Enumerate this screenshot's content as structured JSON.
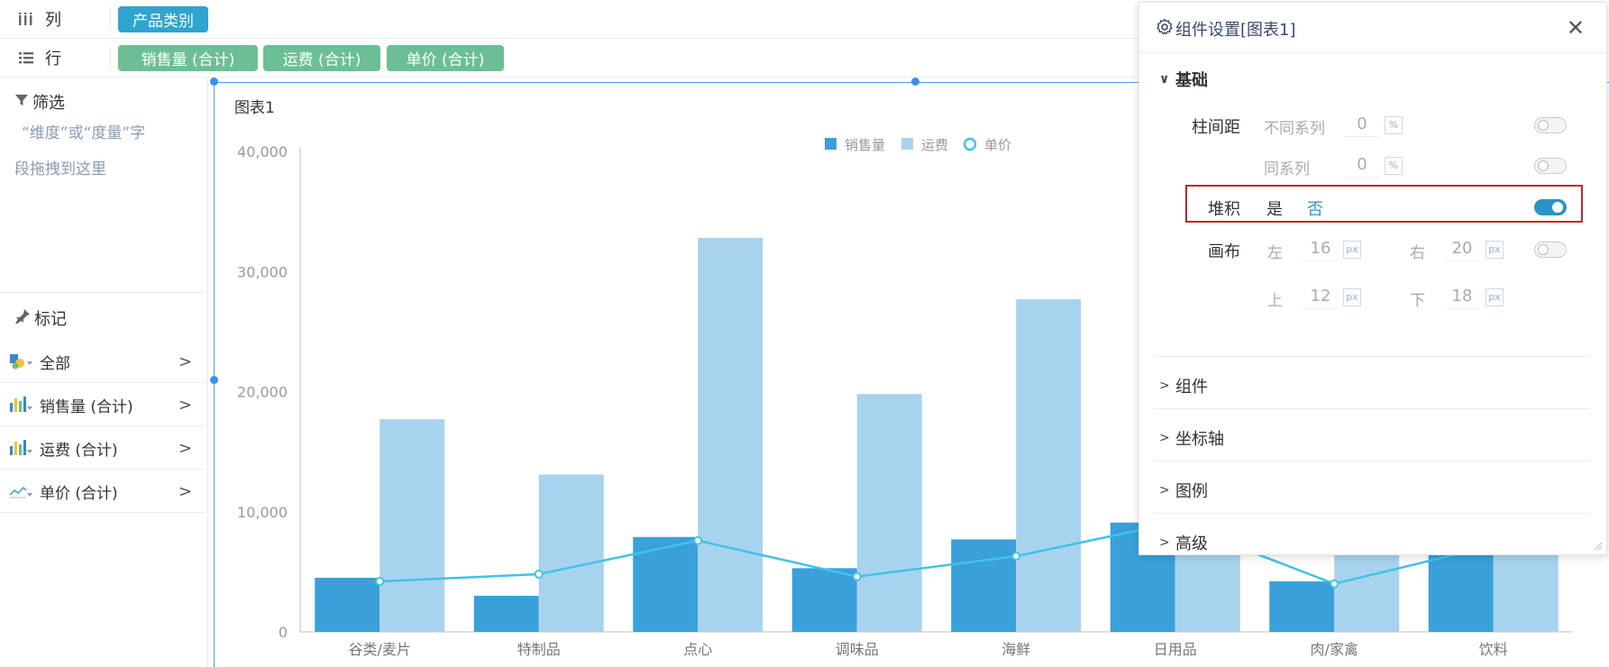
{
  "shelves": {
    "columns": {
      "label": "列",
      "pills": [
        "产品类别"
      ]
    },
    "rows": {
      "label": "行",
      "pills": [
        "销售量 (合计)",
        "运费 (合计)",
        "单价 (合计)"
      ]
    }
  },
  "filter": {
    "title": "筛选",
    "hint_line1": "“维度”或“度量”字",
    "hint_line2": "段拖拽到这里"
  },
  "marks": {
    "title": "标记",
    "items": [
      {
        "label": "全部",
        "icon": "shape-color-icon"
      },
      {
        "label": "销售量 (合计)",
        "icon": "bar-chart-icon"
      },
      {
        "label": "运费 (合计)",
        "icon": "bar-chart-icon"
      },
      {
        "label": "单价 (合计)",
        "icon": "line-chart-icon"
      }
    ]
  },
  "chart_title": "图表1",
  "chart_data": {
    "type": "bar",
    "categories": [
      "谷类/麦片",
      "特制品",
      "点心",
      "调味品",
      "海鲜",
      "日用品",
      "肉/家禽",
      "饮料"
    ],
    "series": [
      {
        "name": "销售量",
        "kind": "bar",
        "color": "#3aa0da",
        "values": [
          4500,
          3000,
          7900,
          5300,
          7700,
          9100,
          4200,
          9100
        ]
      },
      {
        "name": "运费",
        "kind": "bar",
        "color": "#a8d3ee",
        "values": [
          17700,
          13100,
          32800,
          19800,
          27700,
          8300,
          8100,
          8200
        ]
      },
      {
        "name": "单价",
        "kind": "line",
        "color": "#40c3e8",
        "values": [
          4200,
          4800,
          7600,
          4600,
          6300,
          9100,
          4000,
          7200
        ]
      }
    ],
    "yticks": [
      "0",
      "10,000",
      "20,000",
      "30,000",
      "40,000"
    ],
    "ylim": [
      0,
      40000
    ],
    "legend_position": "top-center",
    "grid": false
  },
  "settings": {
    "title": "组件设置[图表1]",
    "basic": "基础",
    "bar_spacing": "柱间距",
    "diff_series": "不同系列",
    "same_series": "同系列",
    "spacing_value_diff": "0",
    "spacing_value_same": "0",
    "percent_unit": "%",
    "stack": "堆积",
    "stack_yes": "是",
    "stack_no": "否",
    "canvas": "画布",
    "left": "左",
    "right": "右",
    "top": "上",
    "bottom": "下",
    "left_val": "16",
    "right_val": "20",
    "top_val": "12",
    "bottom_val": "18",
    "px_unit": "px",
    "sections": [
      "组件",
      "坐标轴",
      "图例",
      "高级"
    ]
  }
}
